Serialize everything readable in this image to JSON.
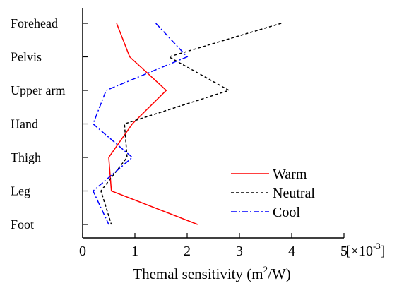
{
  "chart_data": {
    "type": "line",
    "orientation": "horizontal-values",
    "categories": [
      "Forehead",
      "Pelvis",
      "Upper arm",
      "Hand",
      "Thigh",
      "Leg",
      "Foot"
    ],
    "xlabel_prefix": "Themal sensitivity (m",
    "xlabel_sup": "2",
    "xlabel_suffix": "/W)",
    "x_scale_label": "[×10",
    "x_scale_exp": "-3",
    "x_scale_close": "]",
    "xlim": [
      0,
      5
    ],
    "xticks": [
      "0",
      "1",
      "2",
      "3",
      "4",
      "5"
    ],
    "grid": false,
    "legend_position": "bottom-right",
    "series": [
      {
        "name": "Warm",
        "color": "#ff0000",
        "dash": "solid",
        "values": [
          0.65,
          0.9,
          1.6,
          0.95,
          0.5,
          0.55,
          2.2
        ]
      },
      {
        "name": "Neutral",
        "color": "#000000",
        "dash": "dashed",
        "values": [
          3.8,
          1.65,
          2.8,
          0.8,
          0.85,
          0.35,
          0.55
        ]
      },
      {
        "name": "Cool",
        "color": "#0000ff",
        "dash": "dashdot",
        "values": [
          1.4,
          2.0,
          0.45,
          0.2,
          0.95,
          0.2,
          0.5
        ]
      }
    ]
  }
}
